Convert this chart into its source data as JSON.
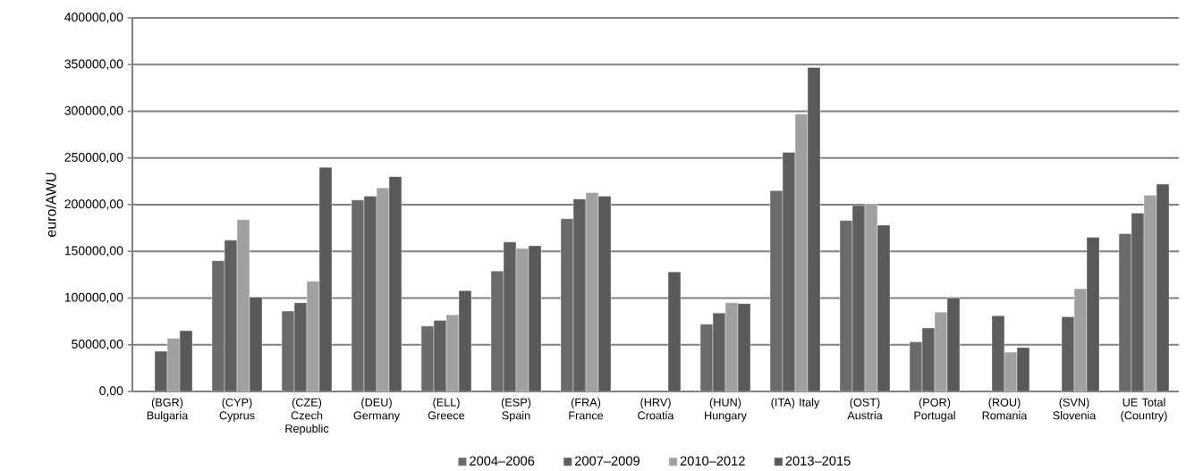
{
  "chart_data": {
    "type": "bar",
    "ylabel": "euro/AWU",
    "categories": [
      "(BGR) Bulgaria",
      "(CYP) Cyprus",
      "(CZE) Czech Republic",
      "(DEU) Germany",
      "(ELL) Greece",
      "(ESP) Spain",
      "(FRA) France",
      "(HRV) Croatia",
      "(HUN) Hungary",
      "(ITA) Italy",
      "(OST) Austria",
      "(POR) Portugal",
      "(ROU) Romania",
      "(SVN) Slovenia",
      "UE Total (Country)"
    ],
    "series": [
      {
        "name": "2004–2006",
        "color": "#6a6a6a",
        "values": [
          null,
          140000,
          86000,
          205000,
          70000,
          129000,
          185000,
          null,
          72000,
          215000,
          183000,
          53000,
          null,
          null,
          169000
        ]
      },
      {
        "name": "2007–2009",
        "color": "#5e5e5e",
        "values": [
          43000,
          162000,
          95000,
          209000,
          76000,
          160000,
          206000,
          null,
          84000,
          256000,
          199000,
          68000,
          81000,
          80000,
          191000
        ]
      },
      {
        "name": "2010–2012",
        "color": "#a0a0a0",
        "values": [
          57000,
          184000,
          118000,
          218000,
          82000,
          153000,
          213000,
          null,
          95000,
          297000,
          201000,
          85000,
          42000,
          110000,
          210000
        ]
      },
      {
        "name": "2013–2015",
        "color": "#595959",
        "values": [
          65000,
          101000,
          240000,
          230000,
          108000,
          156000,
          209000,
          128000,
          94000,
          347000,
          178000,
          100000,
          47000,
          165000,
          222000
        ]
      }
    ],
    "ylim": [
      0,
      400000
    ],
    "yticks": [
      {
        "value": 0,
        "label": "0,00"
      },
      {
        "value": 50000,
        "label": "50000,00"
      },
      {
        "value": 100000,
        "label": "100000,00"
      },
      {
        "value": 150000,
        "label": "150000,00"
      },
      {
        "value": 200000,
        "label": "200000,00"
      },
      {
        "value": 250000,
        "label": "250000,00"
      },
      {
        "value": 300000,
        "label": "300000,00"
      },
      {
        "value": 350000,
        "label": "350000,00"
      },
      {
        "value": 400000,
        "label": "400000,00"
      }
    ],
    "grid": "y",
    "legend": "bottom"
  }
}
